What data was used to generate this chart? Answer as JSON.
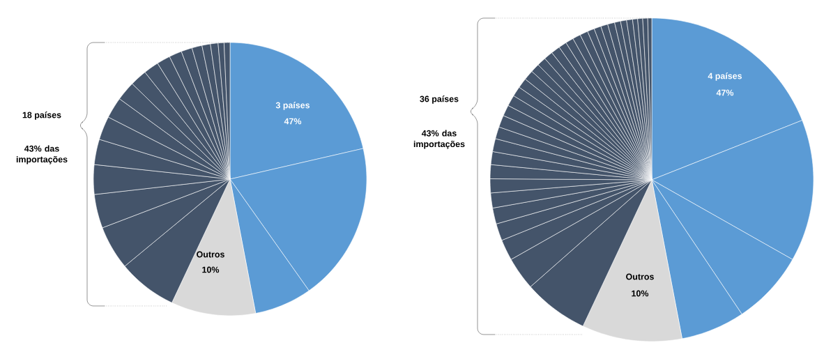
{
  "chart_data": [
    {
      "type": "pie",
      "categories": [
        null,
        null,
        null,
        null,
        null,
        null,
        null,
        null,
        null,
        null,
        null,
        null,
        null,
        null,
        null,
        null,
        null,
        null,
        null,
        null,
        null,
        null
      ],
      "values": [
        21.4,
        18.8,
        6.8,
        10,
        7,
        5.2,
        4,
        3.5,
        3,
        2.8,
        2.5,
        2.3,
        2,
        1.8,
        1.6,
        1.5,
        1.3,
        1.2,
        1,
        0.9,
        0.7,
        0.7
      ],
      "colors": [
        "#5b9bd5",
        "#5b9bd5",
        "#5b9bd5",
        "#d9d9d9",
        "#44546a",
        "#44546a",
        "#44546a",
        "#44546a",
        "#44546a",
        "#44546a",
        "#44546a",
        "#44546a",
        "#44546a",
        "#44546a",
        "#44546a",
        "#44546a",
        "#44546a",
        "#44546a",
        "#44546a",
        "#44546a",
        "#44546a",
        "#44546a"
      ],
      "annotations": [
        "3 países",
        "47%",
        "Outros",
        "10%",
        "18 países",
        "43% das importações"
      ]
    },
    {
      "type": "pie",
      "categories": [
        null,
        null,
        null,
        null,
        null,
        null,
        null,
        null,
        null,
        null,
        null,
        null,
        null,
        null,
        null,
        null,
        null,
        null,
        null,
        null,
        null,
        null,
        null,
        null,
        null,
        null,
        null,
        null,
        null,
        null,
        null,
        null,
        null,
        null,
        null,
        null,
        null,
        null,
        null,
        null,
        null
      ],
      "values": [
        19,
        14.2,
        7.4,
        6.4,
        10,
        6.5,
        3.3,
        2.1,
        1.7,
        1.6,
        1.5,
        1.4,
        1.4,
        1.3,
        1.3,
        1.2,
        1.2,
        1.1,
        1.1,
        1.0,
        1.0,
        1.0,
        0.9,
        0.9,
        0.9,
        0.9,
        0.8,
        0.8,
        0.8,
        0.8,
        0.7,
        0.7,
        0.7,
        0.7,
        0.6,
        0.6,
        0.6,
        0.5,
        0.5,
        0.5,
        0.4
      ],
      "colors": [
        "#5b9bd5",
        "#5b9bd5",
        "#5b9bd5",
        "#5b9bd5",
        "#d9d9d9",
        "#44546a",
        "#44546a",
        "#44546a",
        "#44546a",
        "#44546a",
        "#44546a",
        "#44546a",
        "#44546a",
        "#44546a",
        "#44546a",
        "#44546a",
        "#44546a",
        "#44546a",
        "#44546a",
        "#44546a",
        "#44546a",
        "#44546a",
        "#44546a",
        "#44546a",
        "#44546a",
        "#44546a",
        "#44546a",
        "#44546a",
        "#44546a",
        "#44546a",
        "#44546a",
        "#44546a",
        "#44546a",
        "#44546a",
        "#44546a",
        "#44546a",
        "#44546a",
        "#44546a",
        "#44546a",
        "#44546a",
        "#44546a"
      ],
      "annotations": [
        "4 países",
        "47%",
        "Outros",
        "10%",
        "36 países",
        "43% das importações"
      ]
    }
  ]
}
